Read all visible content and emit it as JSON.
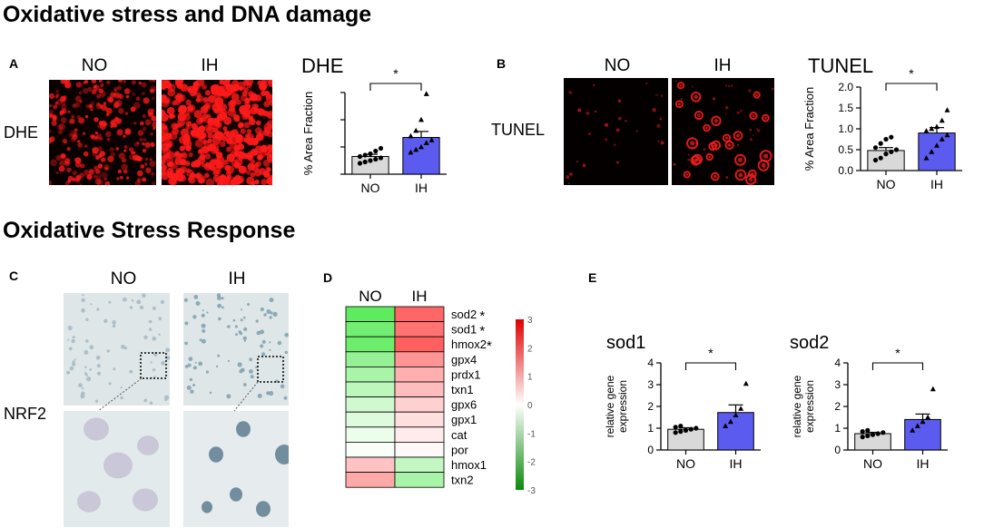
{
  "headings": {
    "oxidative_stress": "Oxidative stress and DNA damage",
    "oxidative_response": "Oxidative Stress Response"
  },
  "panels": {
    "A": {
      "letter": "A",
      "group_labels": [
        "NO",
        "IH"
      ],
      "row_label": "DHE",
      "image_color": "#ff1a1a"
    },
    "B": {
      "letter": "B",
      "group_labels": [
        "NO",
        "IH"
      ],
      "row_label": "TUNEL",
      "image_color": "#ff2020"
    },
    "C": {
      "letter": "C",
      "group_labels": [
        "NO",
        "IH"
      ],
      "row_label": "NRF2",
      "image_color": "#9fb7c2"
    },
    "D": {
      "letter": "D"
    },
    "E": {
      "letter": "E"
    }
  },
  "chart_data": [
    {
      "id": "dhe",
      "type": "bar",
      "title": "DHE",
      "ylabel": "% Area  Fraction",
      "categories": [
        "NO",
        "IH"
      ],
      "values": [
        0.65,
        1.35
      ],
      "errors": [
        0.08,
        0.22
      ],
      "colors": [
        "#d9d9d9",
        "#5b5bf0"
      ],
      "ylim": [
        0,
        3
      ],
      "yticks": [
        0,
        1,
        2,
        3
      ],
      "show_ytick_labels": false,
      "points": [
        [
          0.4,
          0.45,
          0.5,
          0.55,
          0.6,
          0.65,
          0.7,
          0.75,
          0.85,
          0.95
        ],
        [
          0.8,
          0.9,
          1.0,
          1.15,
          1.25,
          1.4,
          1.6,
          2.0,
          2.95
        ]
      ],
      "significance": "*"
    },
    {
      "id": "tunel",
      "type": "bar",
      "title": "TUNEL",
      "ylabel": "% Area  Fraction",
      "categories": [
        "NO",
        "IH"
      ],
      "values": [
        0.48,
        0.9
      ],
      "errors": [
        0.07,
        0.13
      ],
      "colors": [
        "#d9d9d9",
        "#5b5bf0"
      ],
      "ylim": [
        0,
        2.0
      ],
      "yticks": [
        0.0,
        0.5,
        1.0,
        1.5,
        2.0
      ],
      "ytick_labels": [
        "0.0",
        "0.5",
        "1.0",
        "1.5",
        "2.0"
      ],
      "show_ytick_labels": true,
      "points": [
        [
          0.25,
          0.3,
          0.4,
          0.45,
          0.5,
          0.55,
          0.65,
          0.75,
          0.8
        ],
        [
          0.3,
          0.45,
          0.6,
          0.75,
          0.85,
          0.95,
          1.0,
          1.05,
          1.2,
          1.45
        ]
      ],
      "significance": "*"
    },
    {
      "id": "heatmap",
      "type": "heatmap",
      "columns": [
        "NO",
        "IH"
      ],
      "rows": [
        "sod2",
        "sod1",
        "hmox2",
        "gpx4",
        "prdx1",
        "txn1",
        "gpx6",
        "gpx1",
        "cat",
        "por",
        "hmox1",
        "txn2"
      ],
      "row_marks": [
        "*",
        "*",
        "*",
        "",
        "",
        "",
        "",
        "",
        "",
        "",
        "",
        ""
      ],
      "values": [
        [
          -2.4,
          2.3
        ],
        [
          -2.1,
          2.1
        ],
        [
          -2.2,
          2.4
        ],
        [
          -1.6,
          1.6
        ],
        [
          -1.3,
          1.2
        ],
        [
          -1.0,
          1.0
        ],
        [
          -0.7,
          0.7
        ],
        [
          -0.5,
          0.5
        ],
        [
          -0.3,
          0.3
        ],
        [
          -0.1,
          0.1
        ],
        [
          0.9,
          -0.9
        ],
        [
          1.3,
          -1.3
        ]
      ],
      "colorbar_ticks": [
        3,
        2,
        1,
        0,
        -1,
        -2,
        -3
      ],
      "vmin": -3,
      "vmax": 3
    },
    {
      "id": "sod1",
      "type": "bar",
      "title": "sod1",
      "ylabel_lines": [
        "relative gene",
        "expression"
      ],
      "categories": [
        "NO",
        "IH"
      ],
      "values": [
        0.95,
        1.72
      ],
      "errors": [
        0.07,
        0.35
      ],
      "colors": [
        "#d9d9d9",
        "#5b5bf0"
      ],
      "ylim": [
        0,
        4
      ],
      "yticks": [
        0,
        1,
        2,
        3,
        4
      ],
      "ytick_labels": [
        "0",
        "1",
        "2",
        "3",
        "4"
      ],
      "show_ytick_labels": true,
      "points": [
        [
          0.8,
          0.85,
          0.9,
          0.95,
          1.0,
          1.05,
          1.1
        ],
        [
          1.1,
          1.3,
          1.6,
          1.9,
          3.05
        ]
      ],
      "significance": "*"
    },
    {
      "id": "sod2",
      "type": "bar",
      "title": "sod2",
      "ylabel_lines": [
        "relative gene",
        "expression"
      ],
      "categories": [
        "NO",
        "IH"
      ],
      "values": [
        0.75,
        1.4
      ],
      "errors": [
        0.06,
        0.25
      ],
      "colors": [
        "#d9d9d9",
        "#5b5bf0"
      ],
      "ylim": [
        0,
        4
      ],
      "yticks": [
        0,
        1,
        2,
        3,
        4
      ],
      "ytick_labels": [
        "0",
        "1",
        "2",
        "3",
        "4"
      ],
      "show_ytick_labels": true,
      "points": [
        [
          0.6,
          0.65,
          0.7,
          0.75,
          0.8,
          0.85,
          0.9
        ],
        [
          0.9,
          1.1,
          1.3,
          1.5,
          2.8
        ]
      ],
      "significance": "*"
    }
  ]
}
